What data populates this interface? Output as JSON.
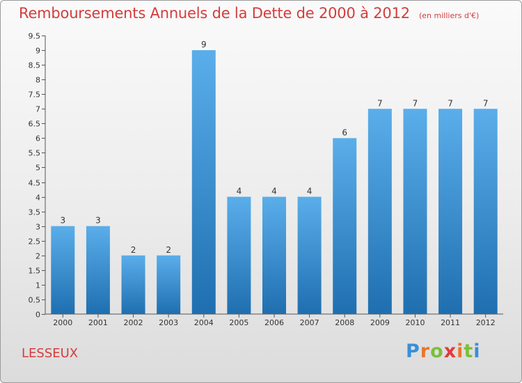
{
  "header": {
    "title": "Remboursements Annuels de la Dette de 2000 à 2012",
    "subtitle": "(en milliers d'€)"
  },
  "footer": {
    "place": "LESSEUX",
    "logo_text": "Proxiti"
  },
  "colors": {
    "title": "#d43c3c",
    "bar_top": "#5aaeea",
    "bar_bottom": "#1f6fb0"
  },
  "chart_data": {
    "type": "bar",
    "title": "Remboursements Annuels de la Dette de 2000 à 2012",
    "subtitle": "(en milliers d'€)",
    "categories": [
      "2000",
      "2001",
      "2002",
      "2003",
      "2004",
      "2005",
      "2006",
      "2007",
      "2008",
      "2009",
      "2010",
      "2011",
      "2012"
    ],
    "values": [
      3,
      3,
      2,
      2,
      9,
      4,
      4,
      4,
      6,
      7,
      7,
      7,
      7
    ],
    "data_labels": [
      "3",
      "3",
      "2",
      "2",
      "9",
      "4",
      "4",
      "4",
      "6",
      "7",
      "7",
      "7",
      "7"
    ],
    "ylim": [
      0,
      9.5
    ],
    "yticks": [
      0,
      0.5,
      1,
      1.5,
      2,
      2.5,
      3,
      3.5,
      4,
      4.5,
      5,
      5.5,
      6,
      6.5,
      7,
      7.5,
      8,
      8.5,
      9,
      9.5
    ],
    "ytick_labels": [
      "0",
      "0.5",
      "1",
      "1.5",
      "2",
      "2.5",
      "3",
      "3.5",
      "4",
      "4.5",
      "5",
      "5.5",
      "6",
      "6.5",
      "7",
      "7.5",
      "8",
      "8.5",
      "9",
      "9.5"
    ],
    "xlabel": "",
    "ylabel": "",
    "grid": false,
    "legend": "none"
  }
}
